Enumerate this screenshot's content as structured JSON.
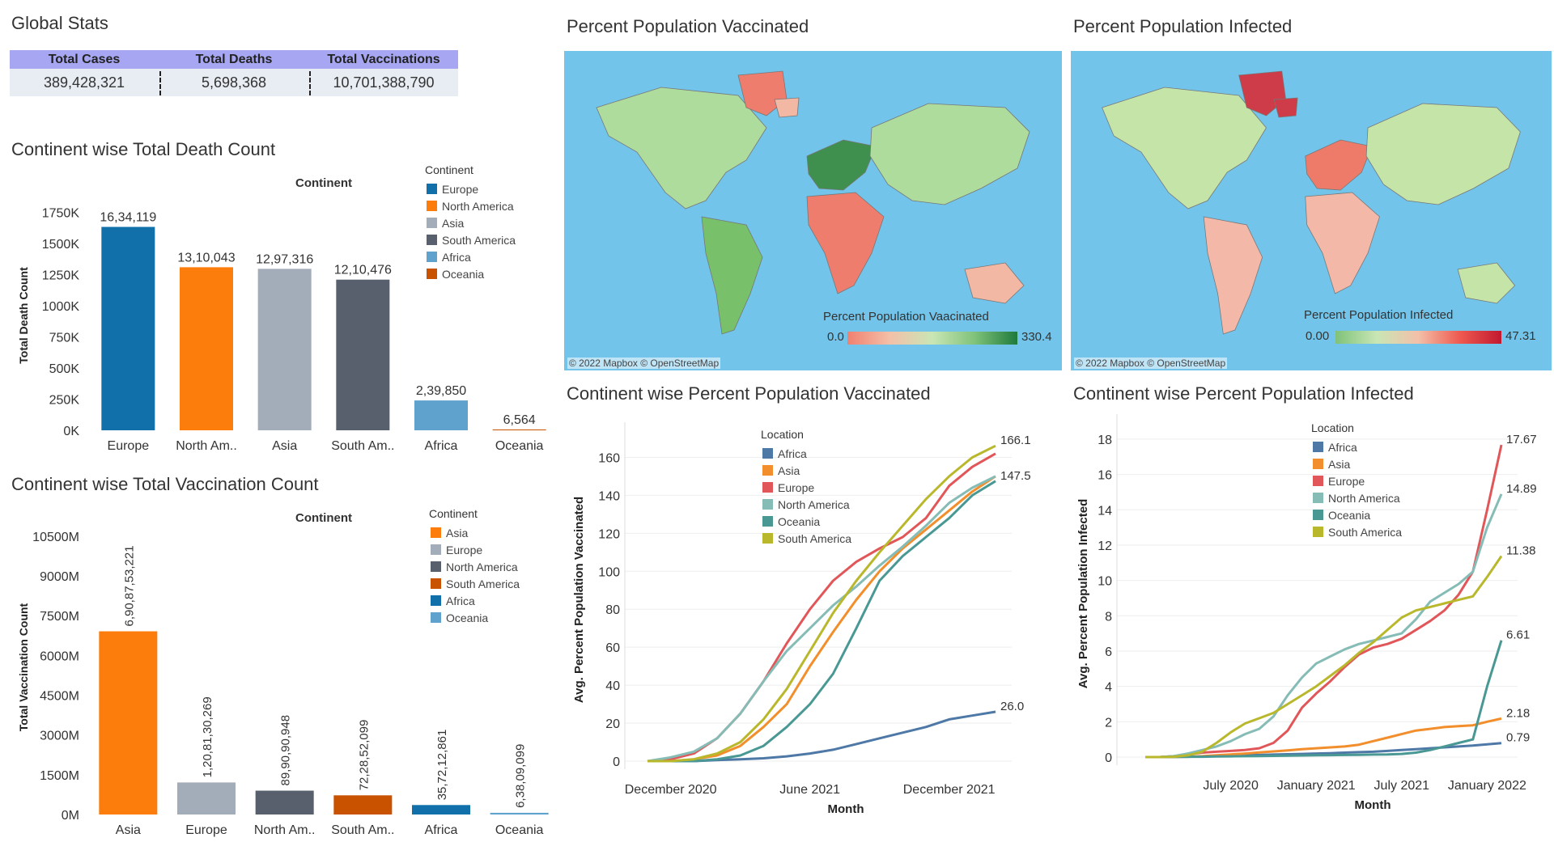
{
  "global_stats": {
    "title": "Global Stats",
    "headers": [
      "Total Cases",
      "Total Deaths",
      "Total Vaccinations"
    ],
    "values": [
      "389,428,321",
      "5,698,368",
      "10,701,388,790"
    ]
  },
  "maps": [
    {
      "title": "Percent Population Vaccinated",
      "legend_title": "Percent Population Vaacinated",
      "min_label": "0.0",
      "max_label": "330.4",
      "copyright": "© 2022 Mapbox © OpenStreetMap",
      "gradient": [
        "#f08070",
        "#f3c0a8",
        "#c9e6b5",
        "#7fc27a",
        "#1e7a3c"
      ]
    },
    {
      "title": "Percent Population Infected",
      "legend_title": "Percent Population Infected",
      "min_label": "0.00",
      "max_label": "47.31",
      "copyright": "© 2022 Mapbox © OpenStreetMap",
      "gradient": [
        "#7fc27a",
        "#c9e6b5",
        "#f3c0a8",
        "#ee5a50",
        "#c21830"
      ]
    }
  ],
  "chart_data": [
    {
      "type": "bar",
      "title": "Continent wise Total Death Count",
      "header": "Continent",
      "ylabel": "Total Death Count",
      "categories": [
        "Europe",
        "North Am..",
        "Asia",
        "South Am..",
        "Africa",
        "Oceania"
      ],
      "values": [
        1634119,
        1310043,
        1297316,
        1210476,
        239850,
        6564
      ],
      "data_labels": [
        "16,34,119",
        "13,10,043",
        "12,97,316",
        "12,10,476",
        "2,39,850",
        "6,564"
      ],
      "colors": [
        "#1170aa",
        "#fc7d0b",
        "#a3acb9",
        "#57606c",
        "#5fa2ce",
        "#c85200"
      ],
      "yticks": [
        0,
        250000,
        500000,
        750000,
        1000000,
        1250000,
        1500000,
        1750000
      ],
      "ytick_labels": [
        "0K",
        "250K",
        "500K",
        "750K",
        "1000K",
        "1250K",
        "1500K",
        "1750K"
      ],
      "ylim": [
        0,
        1800000
      ],
      "legend_title": "Continent",
      "legend": [
        {
          "name": "Europe",
          "color": "#1170aa"
        },
        {
          "name": "North America",
          "color": "#fc7d0b"
        },
        {
          "name": "Asia",
          "color": "#a3acb9"
        },
        {
          "name": "South America",
          "color": "#57606c"
        },
        {
          "name": "Africa",
          "color": "#5fa2ce"
        },
        {
          "name": "Oceania",
          "color": "#c85200"
        }
      ]
    },
    {
      "type": "bar",
      "title": "Continent wise Total Vaccination Count",
      "header": "Continent",
      "ylabel": "Total Vaccination Count",
      "categories": [
        "Asia",
        "Europe",
        "North Am..",
        "South Am..",
        "Africa",
        "Oceania"
      ],
      "values": [
        6908753221,
        1208130269,
        899090948,
        722852099,
        357212861,
        63809099
      ],
      "data_labels": [
        "6,90,87,53,221",
        "1,20,81,30,269",
        "89,90,90,948",
        "72,28,52,099",
        "35,72,12,861",
        "6,38,09,099"
      ],
      "colors": [
        "#fc7d0b",
        "#a3acb9",
        "#57606c",
        "#c85200",
        "#1170aa",
        "#5fa2ce"
      ],
      "yticks": [
        0,
        1500000000,
        3000000000,
        4500000000,
        6000000000,
        7500000000,
        9000000000,
        10500000000
      ],
      "ytick_labels": [
        "0M",
        "1500M",
        "3000M",
        "4500M",
        "6000M",
        "7500M",
        "9000M",
        "10500M"
      ],
      "ylim": [
        0,
        11500000000
      ],
      "legend_title": "Continent",
      "legend": [
        {
          "name": "Asia",
          "color": "#fc7d0b"
        },
        {
          "name": "Europe",
          "color": "#a3acb9"
        },
        {
          "name": "North America",
          "color": "#57606c"
        },
        {
          "name": "South America",
          "color": "#c85200"
        },
        {
          "name": "Africa",
          "color": "#1170aa"
        },
        {
          "name": "Oceania",
          "color": "#5fa2ce"
        }
      ]
    },
    {
      "type": "line",
      "title": "Continent wise Percent Population Vaccinated",
      "xlabel": "Month",
      "ylabel": "Avg. Percent Population Vaccinated",
      "x": [
        "2020-11",
        "2020-12",
        "2021-01",
        "2021-02",
        "2021-03",
        "2021-04",
        "2021-05",
        "2021-06",
        "2021-07",
        "2021-08",
        "2021-09",
        "2021-10",
        "2021-11",
        "2021-12",
        "2022-01",
        "2022-02"
      ],
      "xtick_labels": [
        {
          "x": "2020-12",
          "label": "December 2020"
        },
        {
          "x": "2021-06",
          "label": "June 2021"
        },
        {
          "x": "2021-12",
          "label": "December 2021"
        }
      ],
      "ylim": [
        0,
        170
      ],
      "yticks": [
        0,
        20,
        40,
        60,
        80,
        100,
        120,
        140,
        160
      ],
      "legend_title": "Location",
      "series": [
        {
          "name": "Africa",
          "color": "#4e79a7",
          "values": [
            0,
            0,
            0,
            0.5,
            1,
            1.5,
            2.5,
            4,
            6,
            9,
            12,
            15,
            18,
            22,
            24,
            26
          ]
        },
        {
          "name": "Asia",
          "color": "#f28e2b",
          "values": [
            0,
            0,
            1,
            3,
            8,
            18,
            30,
            50,
            68,
            85,
            100,
            112,
            122,
            132,
            142,
            150
          ]
        },
        {
          "name": "Europe",
          "color": "#e15759",
          "values": [
            0,
            1,
            4,
            12,
            25,
            42,
            62,
            80,
            95,
            105,
            112,
            118,
            128,
            145,
            155,
            162
          ]
        },
        {
          "name": "North America",
          "color": "#86bcb6",
          "values": [
            0,
            2,
            5,
            12,
            25,
            42,
            58,
            70,
            82,
            92,
            103,
            113,
            124,
            136,
            144,
            150
          ]
        },
        {
          "name": "Oceania",
          "color": "#499894",
          "values": [
            0,
            0,
            0,
            1,
            3,
            8,
            18,
            30,
            46,
            70,
            95,
            108,
            118,
            128,
            140,
            147.5
          ]
        },
        {
          "name": "South America",
          "color": "#b9b82c",
          "values": [
            0,
            0,
            1,
            4,
            10,
            22,
            38,
            58,
            78,
            95,
            110,
            124,
            138,
            150,
            160,
            166.1
          ]
        }
      ],
      "end_labels": [
        "26.0",
        "147.5",
        "166.1"
      ]
    },
    {
      "type": "line",
      "title": "Continent wise Percent Population Infected",
      "xlabel": "Month",
      "ylabel": "Avg. Percent Population Infected",
      "x": [
        "2020-01",
        "2020-02",
        "2020-03",
        "2020-04",
        "2020-05",
        "2020-06",
        "2020-07",
        "2020-08",
        "2020-09",
        "2020-10",
        "2020-11",
        "2020-12",
        "2021-01",
        "2021-02",
        "2021-03",
        "2021-04",
        "2021-05",
        "2021-06",
        "2021-07",
        "2021-08",
        "2021-09",
        "2021-10",
        "2021-11",
        "2021-12",
        "2022-01",
        "2022-02"
      ],
      "xtick_labels": [
        {
          "x": "2020-07",
          "label": "July 2020"
        },
        {
          "x": "2021-01",
          "label": "January 2021"
        },
        {
          "x": "2021-07",
          "label": "July 2021"
        },
        {
          "x": "2022-01",
          "label": "January 2022"
        }
      ],
      "ylim": [
        0,
        18.5
      ],
      "yticks": [
        0,
        2,
        4,
        6,
        8,
        10,
        12,
        14,
        16,
        18
      ],
      "legend_title": "Location",
      "series": [
        {
          "name": "Africa",
          "color": "#4e79a7",
          "values": [
            0,
            0,
            0.01,
            0.02,
            0.04,
            0.06,
            0.08,
            0.1,
            0.12,
            0.14,
            0.16,
            0.18,
            0.2,
            0.22,
            0.25,
            0.28,
            0.3,
            0.35,
            0.4,
            0.45,
            0.5,
            0.55,
            0.6,
            0.65,
            0.72,
            0.79
          ]
        },
        {
          "name": "Asia",
          "color": "#f28e2b",
          "values": [
            0,
            0,
            0.01,
            0.02,
            0.05,
            0.1,
            0.15,
            0.2,
            0.26,
            0.32,
            0.38,
            0.45,
            0.5,
            0.55,
            0.6,
            0.7,
            0.9,
            1.1,
            1.3,
            1.5,
            1.6,
            1.7,
            1.75,
            1.8,
            2.0,
            2.18
          ]
        },
        {
          "name": "Europe",
          "color": "#e15759",
          "values": [
            0,
            0,
            0.05,
            0.15,
            0.25,
            0.3,
            0.35,
            0.4,
            0.5,
            0.8,
            1.5,
            2.8,
            3.6,
            4.3,
            5.1,
            5.8,
            6.2,
            6.4,
            6.7,
            7.2,
            7.7,
            8.3,
            9.2,
            10.5,
            14.0,
            17.67
          ]
        },
        {
          "name": "North America",
          "color": "#86bcb6",
          "values": [
            0,
            0,
            0.05,
            0.2,
            0.4,
            0.6,
            0.9,
            1.3,
            1.6,
            2.3,
            3.5,
            4.5,
            5.3,
            5.7,
            6.1,
            6.4,
            6.6,
            6.8,
            7.0,
            7.8,
            8.8,
            9.3,
            9.8,
            10.5,
            13.0,
            14.89
          ]
        },
        {
          "name": "Oceania",
          "color": "#499894",
          "values": [
            0,
            0,
            0.01,
            0.02,
            0.02,
            0.03,
            0.04,
            0.05,
            0.06,
            0.07,
            0.08,
            0.09,
            0.1,
            0.11,
            0.12,
            0.13,
            0.14,
            0.15,
            0.18,
            0.25,
            0.4,
            0.6,
            0.8,
            1.0,
            4.0,
            6.61
          ]
        },
        {
          "name": "South America",
          "color": "#b9b82c",
          "values": [
            0,
            0,
            0.02,
            0.1,
            0.3,
            0.8,
            1.4,
            1.9,
            2.2,
            2.5,
            3.0,
            3.5,
            4.0,
            4.6,
            5.2,
            5.9,
            6.5,
            7.2,
            7.9,
            8.3,
            8.5,
            8.7,
            8.9,
            9.1,
            10.2,
            11.38
          ]
        }
      ],
      "end_labels": [
        "0.79",
        "2.18",
        "6.61",
        "11.38",
        "14.89",
        "17.67"
      ]
    }
  ]
}
